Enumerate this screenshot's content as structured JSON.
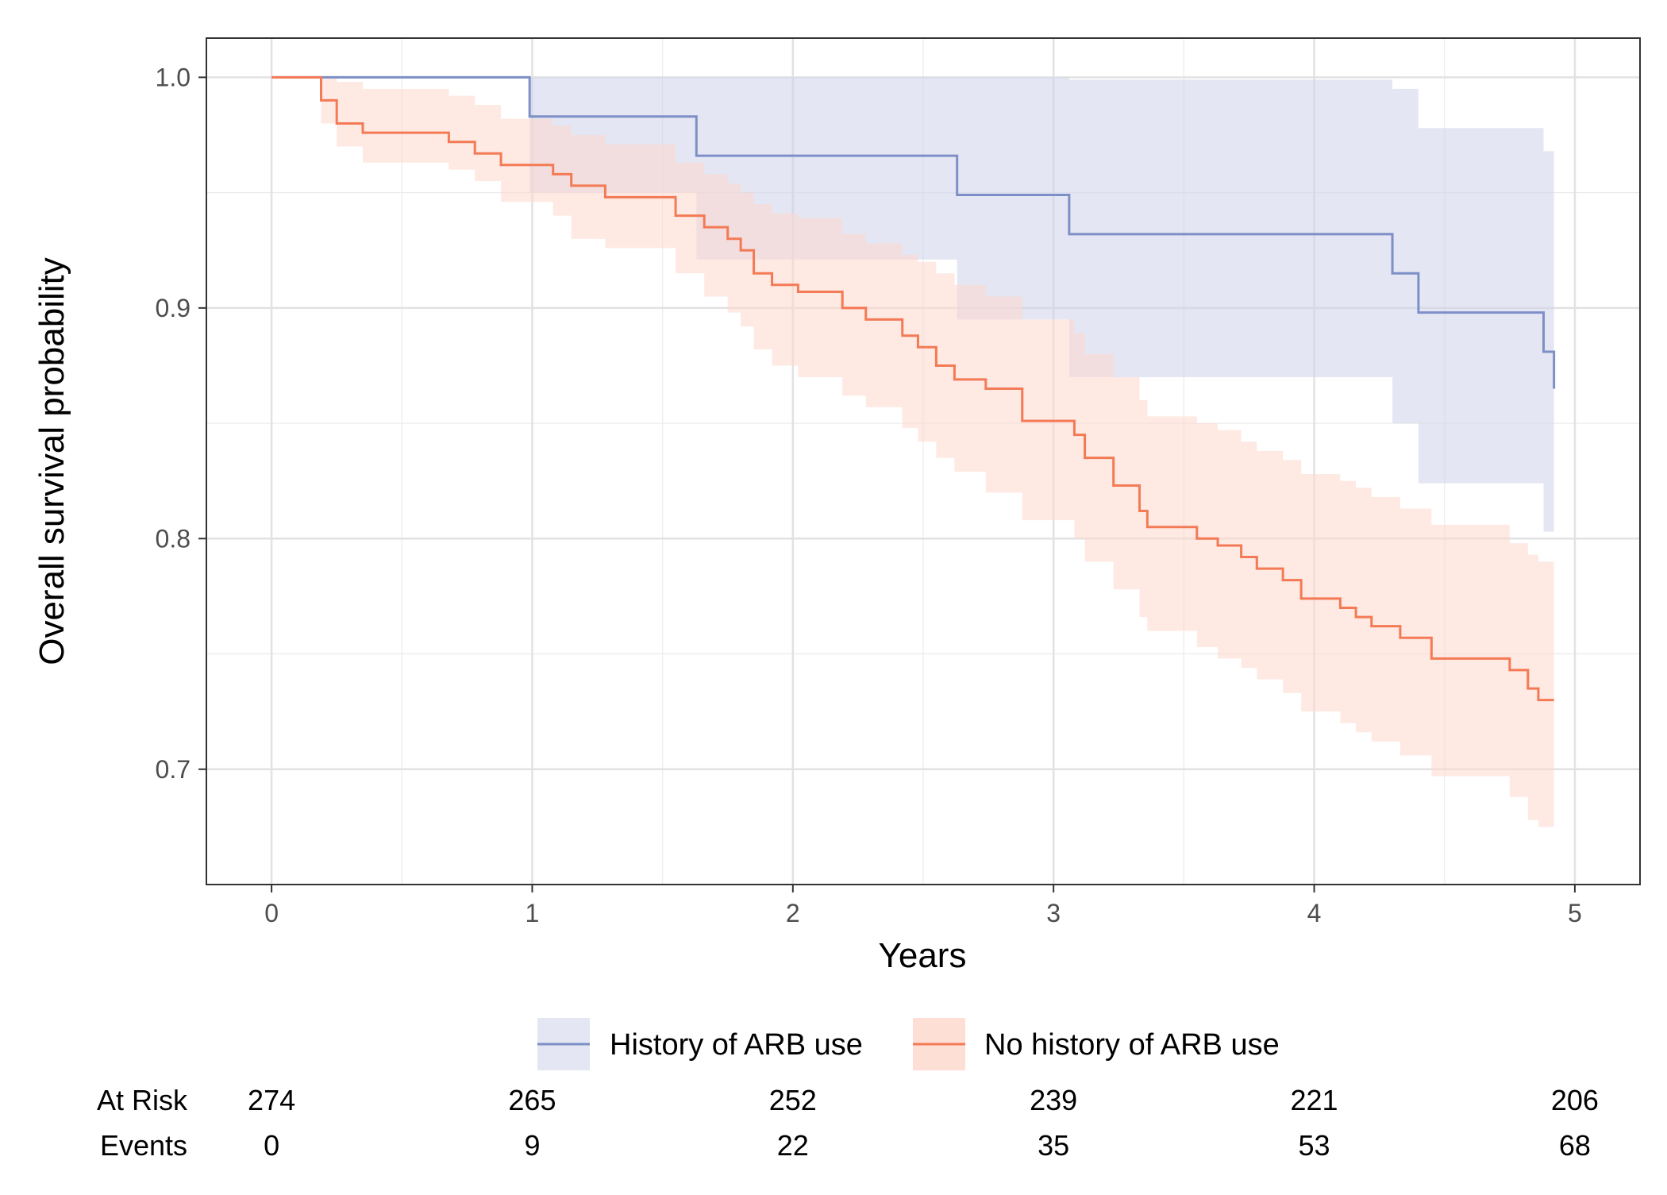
{
  "chart_data": {
    "type": "line",
    "subtype": "kaplan-meier step curves with confidence bands",
    "title": "",
    "xlabel": "Years",
    "ylabel": "Overall survival probability",
    "xlim": [
      -0.25,
      5.25
    ],
    "ylim": [
      0.65,
      1.017
    ],
    "x_ticks": [
      0,
      1,
      2,
      3,
      4,
      5
    ],
    "y_ticks": [
      0.7,
      0.8,
      0.9,
      1.0
    ],
    "y_tick_labels": [
      "0.7",
      "0.8",
      "0.9",
      "1.0"
    ],
    "grid": true,
    "legend_position": "bottom",
    "series": [
      {
        "name": "History of ARB use",
        "color": "#7d8fc6",
        "band_color": "#cdd3ea",
        "x": [
          0,
          0.99,
          1.63,
          2.63,
          3.06,
          4.3,
          4.4,
          4.88,
          4.92
        ],
        "y": [
          1.0,
          0.983,
          0.966,
          0.949,
          0.932,
          0.915,
          0.898,
          0.881,
          0.865
        ],
        "lower": [
          1.0,
          0.95,
          0.921,
          0.895,
          0.87,
          0.85,
          0.824,
          0.803,
          0.803
        ],
        "upper": [
          1.0,
          1.0,
          1.0,
          1.0,
          0.999,
          0.995,
          0.978,
          0.968,
          0.968
        ]
      },
      {
        "name": "No history of ARB use",
        "color": "#f47a55",
        "band_color": "#fdd7cc",
        "x": [
          0,
          0.19,
          0.25,
          0.35,
          0.68,
          0.78,
          0.88,
          1.08,
          1.15,
          1.28,
          1.55,
          1.66,
          1.75,
          1.8,
          1.85,
          1.92,
          2.02,
          2.19,
          2.28,
          2.42,
          2.48,
          2.55,
          2.62,
          2.74,
          2.88,
          3.08,
          3.12,
          3.23,
          3.33,
          3.36,
          3.55,
          3.63,
          3.72,
          3.78,
          3.88,
          3.95,
          4.1,
          4.16,
          4.22,
          4.33,
          4.45,
          4.75,
          4.82,
          4.86
        ],
        "y": [
          1.0,
          0.99,
          0.98,
          0.976,
          0.972,
          0.967,
          0.962,
          0.958,
          0.953,
          0.948,
          0.94,
          0.935,
          0.93,
          0.925,
          0.915,
          0.91,
          0.907,
          0.9,
          0.895,
          0.888,
          0.883,
          0.875,
          0.869,
          0.865,
          0.851,
          0.845,
          0.835,
          0.823,
          0.812,
          0.805,
          0.8,
          0.797,
          0.792,
          0.787,
          0.782,
          0.774,
          0.77,
          0.766,
          0.762,
          0.757,
          0.748,
          0.743,
          0.735,
          0.73
        ],
        "lower": [
          1.0,
          0.98,
          0.97,
          0.963,
          0.96,
          0.955,
          0.946,
          0.94,
          0.93,
          0.926,
          0.915,
          0.905,
          0.898,
          0.892,
          0.882,
          0.875,
          0.87,
          0.862,
          0.857,
          0.848,
          0.842,
          0.835,
          0.829,
          0.82,
          0.808,
          0.8,
          0.79,
          0.778,
          0.766,
          0.76,
          0.753,
          0.748,
          0.744,
          0.739,
          0.733,
          0.725,
          0.72,
          0.716,
          0.712,
          0.706,
          0.697,
          0.688,
          0.678,
          0.675
        ],
        "upper": [
          1.0,
          1.0,
          0.998,
          0.995,
          0.992,
          0.988,
          0.982,
          0.979,
          0.975,
          0.971,
          0.963,
          0.958,
          0.954,
          0.95,
          0.945,
          0.941,
          0.939,
          0.932,
          0.928,
          0.923,
          0.92,
          0.915,
          0.91,
          0.905,
          0.895,
          0.889,
          0.88,
          0.87,
          0.86,
          0.853,
          0.85,
          0.847,
          0.842,
          0.838,
          0.834,
          0.828,
          0.825,
          0.822,
          0.818,
          0.813,
          0.806,
          0.798,
          0.793,
          0.79
        ]
      }
    ],
    "end_x": 4.92,
    "risk_table": {
      "at_risk_label": "At Risk",
      "events_label": "Events",
      "x": [
        0,
        1,
        2,
        3,
        4,
        5
      ],
      "at_risk": [
        "274",
        "265",
        "252",
        "239",
        "221",
        "206"
      ],
      "events": [
        "0",
        "9",
        "22",
        "35",
        "53",
        "68"
      ]
    }
  }
}
